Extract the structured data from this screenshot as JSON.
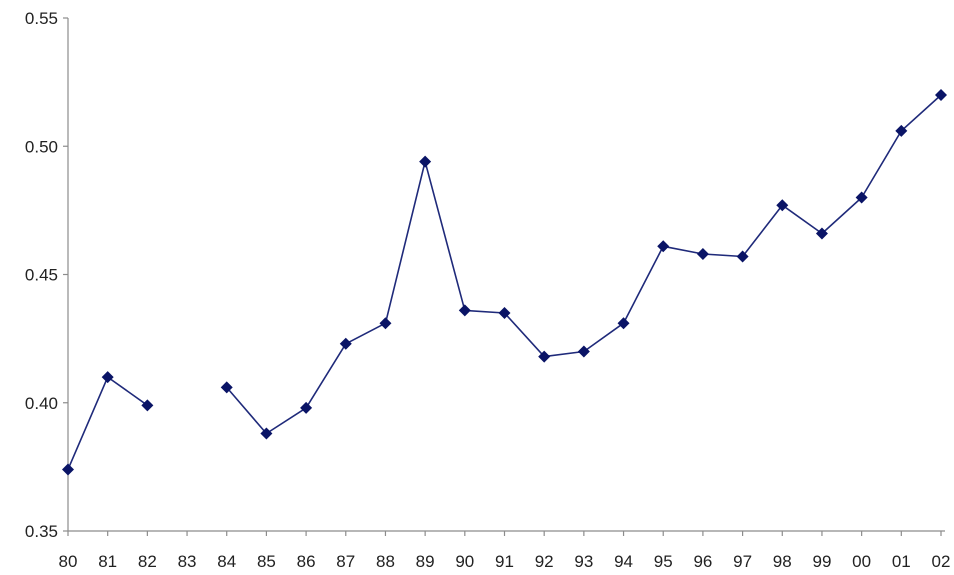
{
  "chart_data": {
    "type": "line",
    "title": "",
    "xlabel": "",
    "ylabel": "",
    "categories": [
      "80",
      "81",
      "82",
      "83",
      "84",
      "85",
      "86",
      "87",
      "88",
      "89",
      "90",
      "91",
      "92",
      "93",
      "94",
      "95",
      "96",
      "97",
      "98",
      "99",
      "00",
      "01",
      "02"
    ],
    "series": [
      {
        "values": [
          0.374,
          0.41,
          0.399,
          null,
          0.406,
          0.388,
          0.398,
          0.423,
          0.431,
          0.494,
          0.436,
          0.435,
          0.418,
          0.42,
          0.431,
          0.461,
          0.458,
          0.457,
          0.477,
          0.466,
          0.48,
          0.506,
          0.52
        ],
        "color": "#1f2a7a"
      }
    ],
    "ylim": [
      0.35,
      0.55
    ],
    "yticks": [
      "0.35",
      "0.40",
      "0.45",
      "0.50",
      "0.55"
    ],
    "grid": false,
    "legend": "none",
    "colors": {
      "line": "#1f2a7a",
      "marker": "#0a1466",
      "axis": "#8c8c8c",
      "text": "#222222"
    }
  }
}
